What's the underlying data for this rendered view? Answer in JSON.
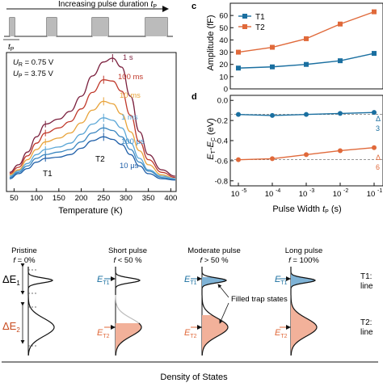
{
  "pulse_panel": {
    "label_text": "Increasing pulse duration ",
    "label_italic": "t",
    "label_sub": "P",
    "tp_label": "t",
    "tp_sub": "P"
  },
  "tsc_panel": {
    "ur_label": "U",
    "ur_sub": "R",
    "ur_value": " = 0.75 V",
    "up_label": "U",
    "up_sub": "P",
    "up_value": " = 3.75 V",
    "peak1_label": "T1",
    "peak2_label": "T2",
    "xlabel": "Temperature (K)",
    "xticks": [
      "50",
      "100",
      "150",
      "200",
      "250",
      "300",
      "350",
      "400"
    ],
    "curve_labels": [
      "1 s",
      "100 ms",
      "10 ms",
      "1 ms",
      "100 μs",
      "10 μs"
    ],
    "colors": [
      "#7a1f3d",
      "#c0392b",
      "#e8a33a",
      "#5aa6d6",
      "#3a86c0",
      "#1f5fa8"
    ]
  },
  "panel_c": {
    "letter": "c",
    "ylabel": "Amplitude (fF)",
    "yticks": [
      "0",
      "10",
      "20",
      "30",
      "40",
      "50",
      "60"
    ],
    "legend": [
      "T1",
      "T2"
    ],
    "colors": {
      "T1": "#1a6fa0",
      "T2": "#e0693a"
    }
  },
  "panel_d": {
    "letter": "d",
    "ylabel_main": "E",
    "ylabel_sub1": "T",
    "ylabel_dash": "-E",
    "ylabel_sub2": "C",
    "ylabel_unit": " (eV)",
    "yticks": [
      "0.0",
      "-0.2",
      "-0.4",
      "-0.6",
      "-0.8"
    ],
    "xlabel_text": "Pulse Width ",
    "xlabel_italic": "t",
    "xlabel_sub": "P",
    "xlabel_unit": " (s)",
    "xtick_exps": [
      "-5",
      "-4",
      "-3",
      "-2",
      "-1"
    ],
    "edge_labels": [
      "Δ",
      "3",
      "Δ",
      "6"
    ]
  },
  "chart_data": [
    {
      "type": "line",
      "xlabel": "Temperature (K)",
      "xlim": [
        50,
        400
      ],
      "series": [
        {
          "name": "1 s",
          "x": [
            40,
            60,
            80,
            100,
            120,
            150,
            175,
            200,
            225,
            250,
            270,
            290,
            310,
            330,
            350,
            380,
            410
          ],
          "values": [
            0.1,
            0.16,
            0.26,
            0.38,
            0.48,
            0.52,
            0.58,
            0.7,
            0.86,
            0.97,
            1.0,
            0.93,
            0.7,
            0.42,
            0.24,
            0.12,
            0.07
          ]
        },
        {
          "name": "100 ms",
          "x": [
            40,
            60,
            80,
            100,
            120,
            150,
            175,
            200,
            225,
            250,
            270,
            290,
            310,
            330,
            350,
            380,
            410
          ],
          "values": [
            0.09,
            0.14,
            0.23,
            0.33,
            0.41,
            0.45,
            0.5,
            0.6,
            0.73,
            0.83,
            0.82,
            0.74,
            0.55,
            0.34,
            0.2,
            0.1,
            0.06
          ]
        },
        {
          "name": "10 ms",
          "x": [
            40,
            60,
            80,
            100,
            120,
            150,
            175,
            200,
            225,
            250,
            270,
            290,
            310,
            330,
            350,
            380,
            410
          ],
          "values": [
            0.08,
            0.12,
            0.2,
            0.28,
            0.34,
            0.37,
            0.41,
            0.49,
            0.59,
            0.66,
            0.64,
            0.56,
            0.42,
            0.27,
            0.16,
            0.08,
            0.05
          ]
        },
        {
          "name": "1 ms",
          "x": [
            40,
            60,
            80,
            100,
            120,
            150,
            175,
            200,
            225,
            250,
            270,
            290,
            310,
            330,
            350,
            380,
            410
          ],
          "values": [
            0.07,
            0.11,
            0.17,
            0.24,
            0.28,
            0.3,
            0.33,
            0.4,
            0.48,
            0.53,
            0.51,
            0.45,
            0.33,
            0.21,
            0.12,
            0.07,
            0.05
          ]
        },
        {
          "name": "100 μs",
          "x": [
            40,
            60,
            80,
            100,
            120,
            150,
            175,
            200,
            225,
            250,
            270,
            290,
            310,
            330,
            350,
            380,
            410
          ],
          "values": [
            0.06,
            0.1,
            0.15,
            0.21,
            0.24,
            0.26,
            0.28,
            0.34,
            0.41,
            0.45,
            0.43,
            0.38,
            0.28,
            0.18,
            0.11,
            0.06,
            0.04
          ]
        },
        {
          "name": "10 μs",
          "x": [
            40,
            60,
            80,
            100,
            120,
            150,
            175,
            200,
            225,
            250,
            270,
            290,
            310,
            330,
            350,
            380,
            410
          ],
          "values": [
            0.05,
            0.09,
            0.13,
            0.18,
            0.21,
            0.22,
            0.24,
            0.29,
            0.35,
            0.38,
            0.36,
            0.32,
            0.24,
            0.15,
            0.09,
            0.05,
            0.04
          ]
        }
      ]
    },
    {
      "type": "line",
      "ylabel": "Amplitude (fF)",
      "ylim": [
        0,
        60
      ],
      "x": [
        1e-05,
        0.0001,
        0.001,
        0.01,
        0.1
      ],
      "series": [
        {
          "name": "T1",
          "values": [
            17,
            18,
            20,
            23,
            29
          ]
        },
        {
          "name": "T2",
          "values": [
            30,
            34,
            41,
            53,
            63
          ]
        }
      ]
    },
    {
      "type": "line",
      "ylabel": "ET-EC (eV)",
      "xlabel": "Pulse Width tP (s)",
      "ylim": [
        -0.8,
        0.05
      ],
      "x": [
        1e-05,
        0.0001,
        0.001,
        0.01,
        0.1
      ],
      "series": [
        {
          "name": "T1",
          "values": [
            -0.14,
            -0.15,
            -0.14,
            -0.13,
            -0.12
          ]
        },
        {
          "name": "T2",
          "values": [
            -0.59,
            -0.58,
            -0.54,
            -0.5,
            -0.47
          ]
        }
      ]
    }
  ],
  "dos": {
    "columns": [
      {
        "title": "Pristine",
        "f_main": "f",
        "f_rest": " = 0%"
      },
      {
        "title": "Short pulse",
        "f_main": "f",
        "f_rest": " < 50 %"
      },
      {
        "title": "Moderate pulse",
        "f_main": "f",
        "f_rest": " > 50 %"
      },
      {
        "title": "Long pulse",
        "f_main": "f",
        "f_rest": " = 100%"
      }
    ],
    "delta_e1_main": "ΔE",
    "delta_e1_sub": "1",
    "delta_e2_main": "ΔE",
    "delta_e2_sub": "2",
    "et1_main": "E",
    "et1_sub": "T1",
    "et2_main": "E",
    "et2_sub": "T2",
    "filled_label": "Filled trap states",
    "right_t1": "T1:",
    "right_t1_line": "line",
    "right_t2": "T2:",
    "right_t2_line": "line",
    "bottom_label": "Density of States"
  }
}
